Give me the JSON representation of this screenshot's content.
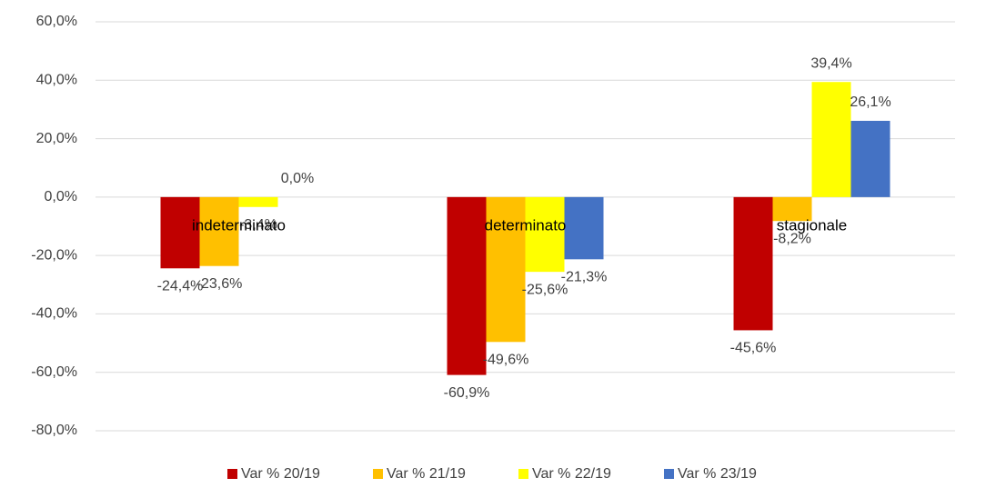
{
  "chart_data": {
    "type": "bar",
    "categories": [
      "indeterminato",
      "determinato",
      "stagionale"
    ],
    "series": [
      {
        "name": "Var % 20/19",
        "color": "#c00000",
        "values": [
          -24.4,
          -60.9,
          -45.6
        ],
        "value_labels": [
          "-24,4%",
          "-60,9%",
          "-45,6%"
        ]
      },
      {
        "name": "Var % 21/19",
        "color": "#ffc000",
        "values": [
          -23.6,
          -49.6,
          -8.2
        ],
        "value_labels": [
          "-23,6%",
          "-49,6%",
          "-8,2%"
        ]
      },
      {
        "name": "Var % 22/19",
        "color": "#ffff00",
        "values": [
          -3.4,
          -25.6,
          39.4
        ],
        "value_labels": [
          "-3,4%",
          "-25,6%",
          "39,4%"
        ]
      },
      {
        "name": "Var % 23/19",
        "color": "#4472c4",
        "values": [
          0.0,
          -21.3,
          26.1
        ],
        "value_labels": [
          "0,0%",
          "-21,3%",
          "26,1%"
        ]
      }
    ],
    "ylim": [
      -80,
      60
    ],
    "yticks": [
      {
        "value": -80,
        "label": "-80,0%"
      },
      {
        "value": -60,
        "label": "-60,0%"
      },
      {
        "value": -40,
        "label": "-40,0%"
      },
      {
        "value": -20,
        "label": "-20,0%"
      },
      {
        "value": 0,
        "label": "0,0%"
      },
      {
        "value": 20,
        "label": "20,0%"
      },
      {
        "value": 40,
        "label": "40,0%"
      },
      {
        "value": 60,
        "label": "60,0%"
      }
    ],
    "grid": true,
    "legend": "bottom"
  }
}
